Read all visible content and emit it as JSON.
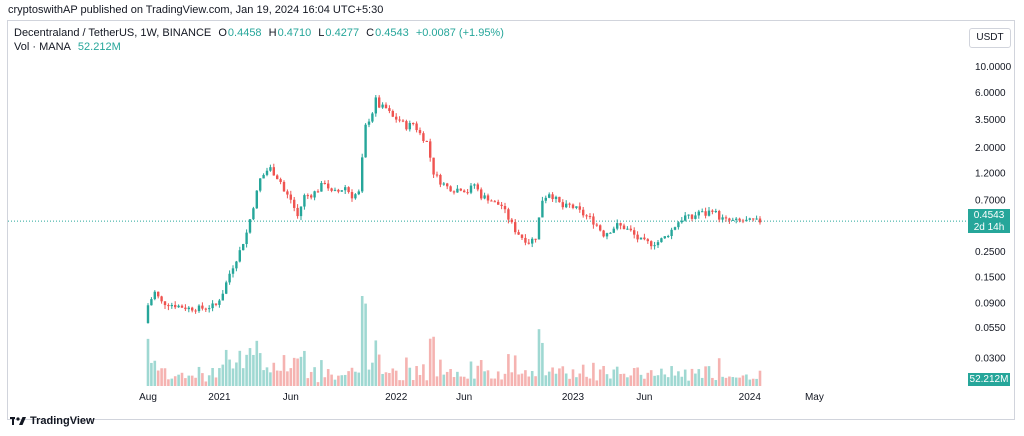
{
  "publisher_line": "cryptoswithAP published on TradingView.com, Jan 19, 2024 16:04 UTC+5:30",
  "legend": {
    "symbol": "Decentraland / TetherUS, 1W, BINANCE",
    "open_label": "O",
    "open": "0.4458",
    "high_label": "H",
    "high": "0.4710",
    "low_label": "L",
    "low": "0.4277",
    "close_label": "C",
    "close": "0.4543",
    "change": "+0.0087 (+1.95%)",
    "volume_label": "Vol · MANA",
    "volume": "52.212M"
  },
  "currency_button": "USDT",
  "last_price_badge": "0.4543",
  "countdown_badge": "2d 14h",
  "volume_badge": "52.212M",
  "footer_brand": "TradingView",
  "colors": {
    "up": "#26a69a",
    "down": "#ef5350",
    "up_vol": "#9fd8d2",
    "down_vol": "#f5b3b1",
    "grid_line": "#26a69a"
  },
  "chart_data": {
    "type": "candlestick",
    "title": "Decentraland / TetherUS, 1W, BINANCE",
    "y_scale": "log",
    "ylim": [
      0.022,
      12
    ],
    "y_ticks": [
      "10.0000",
      "6.0000",
      "3.5000",
      "2.0000",
      "1.2000",
      "0.7000",
      "0.4000",
      "0.2500",
      "0.1500",
      "0.0900",
      "0.0550",
      "0.0300"
    ],
    "x_ticks": [
      "Aug",
      "2021",
      "Jun",
      "2022",
      "Jun",
      "2023",
      "Jun",
      "2024",
      "May"
    ],
    "x_tick_weeks": [
      0,
      21,
      42,
      73,
      93,
      125,
      146,
      177,
      196
    ],
    "last_price": 0.4543,
    "series": [
      {
        "name": "MANA/USDT weekly close (approx. key points)",
        "x_week": [
          0,
          2,
          4,
          8,
          12,
          16,
          20,
          22,
          24,
          27,
          29,
          31,
          33,
          35,
          36,
          39,
          40,
          42,
          44,
          46,
          48,
          50,
          52,
          54,
          56,
          58,
          60,
          62,
          64,
          66,
          67,
          68,
          70,
          72,
          74,
          76,
          78,
          80,
          82,
          84,
          86,
          88,
          90,
          92,
          94,
          96,
          98,
          100,
          102,
          104,
          106,
          108,
          110,
          112,
          114,
          116,
          118,
          120,
          122,
          124,
          126,
          128,
          130,
          132,
          134,
          136,
          138,
          140,
          142,
          144,
          146,
          148,
          150,
          152,
          154,
          156,
          158,
          160,
          162,
          164,
          166,
          168,
          170,
          172,
          174,
          176,
          178,
          180
        ],
        "close": [
          0.085,
          0.11,
          0.09,
          0.085,
          0.08,
          0.08,
          0.085,
          0.11,
          0.16,
          0.25,
          0.36,
          0.62,
          1.05,
          1.25,
          1.3,
          1.0,
          0.82,
          0.7,
          0.5,
          0.75,
          0.77,
          0.85,
          1.0,
          0.8,
          0.82,
          0.9,
          0.75,
          0.8,
          3.0,
          4.0,
          5.1,
          4.5,
          4.3,
          3.6,
          3.4,
          3.0,
          3.2,
          2.6,
          2.2,
          1.2,
          1.0,
          0.9,
          0.85,
          0.88,
          0.82,
          0.95,
          0.75,
          0.72,
          0.65,
          0.62,
          0.48,
          0.38,
          0.33,
          0.3,
          0.33,
          0.7,
          0.8,
          0.7,
          0.6,
          0.62,
          0.58,
          0.52,
          0.48,
          0.42,
          0.35,
          0.38,
          0.42,
          0.4,
          0.37,
          0.32,
          0.3,
          0.29,
          0.3,
          0.33,
          0.38,
          0.45,
          0.5,
          0.48,
          0.55,
          0.52,
          0.58,
          0.49,
          0.46,
          0.455,
          0.454,
          0.4543,
          0.4543,
          0.4543
        ]
      }
    ]
  }
}
